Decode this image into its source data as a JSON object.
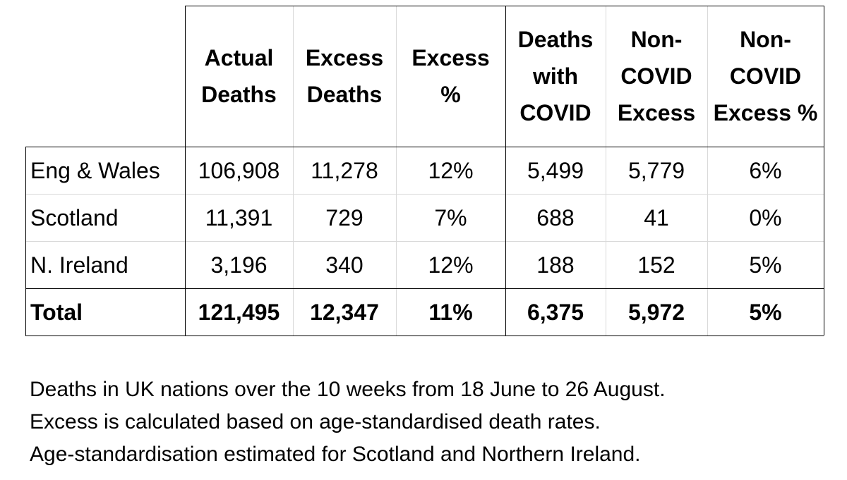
{
  "table": {
    "columns": [
      "Actual\nDeaths",
      "Excess\nDeaths",
      "Excess\n%",
      "Deaths\nwith\nCOVID",
      "Non-\nCOVID\nExcess",
      "Non-\nCOVID\nExcess %"
    ],
    "rows": [
      {
        "label": "Eng & Wales",
        "values": [
          "106,908",
          "11,278",
          "12%",
          "5,499",
          "5,779",
          "6%"
        ]
      },
      {
        "label": "Scotland",
        "values": [
          "11,391",
          "729",
          "7%",
          "688",
          "41",
          "0%"
        ]
      },
      {
        "label": "N. Ireland",
        "values": [
          "3,196",
          "340",
          "12%",
          "188",
          "152",
          "5%"
        ]
      }
    ],
    "total": {
      "label": "Total",
      "values": [
        "121,495",
        "12,347",
        "11%",
        "6,375",
        "5,972",
        "5%"
      ]
    }
  },
  "notes": [
    "Deaths in UK nations over the 10 weeks from 18 June to 26 August.",
    "Excess is calculated based on age-standardised death rates.",
    "Age-standardisation estimated for Scotland and Northern Ireland."
  ]
}
